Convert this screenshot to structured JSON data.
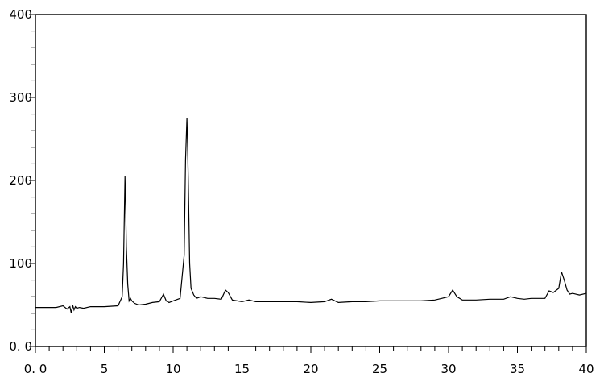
{
  "chart_data": {
    "type": "line",
    "title": "",
    "xlabel": "",
    "ylabel": "",
    "xlim": [
      0,
      40
    ],
    "ylim": [
      0,
      400
    ],
    "grid": false,
    "legend": "none",
    "x_ticks": [
      {
        "value": 0,
        "label": "0. 0"
      },
      {
        "value": 5,
        "label": "5"
      },
      {
        "value": 10,
        "label": "10"
      },
      {
        "value": 15,
        "label": "15"
      },
      {
        "value": 20,
        "label": "20"
      },
      {
        "value": 25,
        "label": "25"
      },
      {
        "value": 30,
        "label": "30"
      },
      {
        "value": 35,
        "label": "35"
      },
      {
        "value": 40,
        "label": "40"
      }
    ],
    "y_ticks": [
      {
        "value": 0,
        "label": "0. 0"
      },
      {
        "value": 100,
        "label": "100"
      },
      {
        "value": 200,
        "label": "200"
      },
      {
        "value": 300,
        "label": "300"
      },
      {
        "value": 400,
        "label": "400"
      }
    ],
    "series": [
      {
        "color": "#000000",
        "x": [
          0,
          1.5,
          2.0,
          2.3,
          2.5,
          2.6,
          2.7,
          2.8,
          2.9,
          3.0,
          3.2,
          3.5,
          4.0,
          5.0,
          6.0,
          6.3,
          6.4,
          6.5,
          6.55,
          6.6,
          6.7,
          6.8,
          6.9,
          7.0,
          7.2,
          7.5,
          8.0,
          8.5,
          9.0,
          9.3,
          9.5,
          9.7,
          10.0,
          10.5,
          10.8,
          10.9,
          11.0,
          11.05,
          11.1,
          11.2,
          11.3,
          11.5,
          11.7,
          12.0,
          12.5,
          13.0,
          13.5,
          13.8,
          14.0,
          14.3,
          15.0,
          15.5,
          16.0,
          17.0,
          18.0,
          19.0,
          20.0,
          21.0,
          21.5,
          22.0,
          23.0,
          24.0,
          25.0,
          26.0,
          27.0,
          28.0,
          29.0,
          29.5,
          30.0,
          30.3,
          30.6,
          31.0,
          32.0,
          33.0,
          34.0,
          34.5,
          35.0,
          35.5,
          36.0,
          37.0,
          37.3,
          37.6,
          38.0,
          38.2,
          38.4,
          38.6,
          38.8,
          39.0,
          39.5,
          40.0
        ],
        "y": [
          47,
          47,
          49,
          45,
          48,
          40,
          50,
          44,
          48,
          46,
          47,
          46,
          48,
          48,
          49,
          60,
          100,
          205,
          170,
          120,
          75,
          55,
          58,
          55,
          52,
          50,
          51,
          53,
          54,
          63,
          55,
          53,
          55,
          58,
          110,
          225,
          275,
          240,
          200,
          100,
          70,
          62,
          58,
          60,
          58,
          58,
          57,
          68,
          65,
          56,
          54,
          56,
          54,
          54,
          54,
          54,
          53,
          54,
          57,
          53,
          54,
          54,
          55,
          55,
          55,
          55,
          56,
          58,
          60,
          68,
          60,
          56,
          56,
          57,
          57,
          60,
          58,
          57,
          58,
          58,
          67,
          65,
          70,
          90,
          80,
          68,
          63,
          64,
          62,
          64
        ]
      }
    ]
  }
}
